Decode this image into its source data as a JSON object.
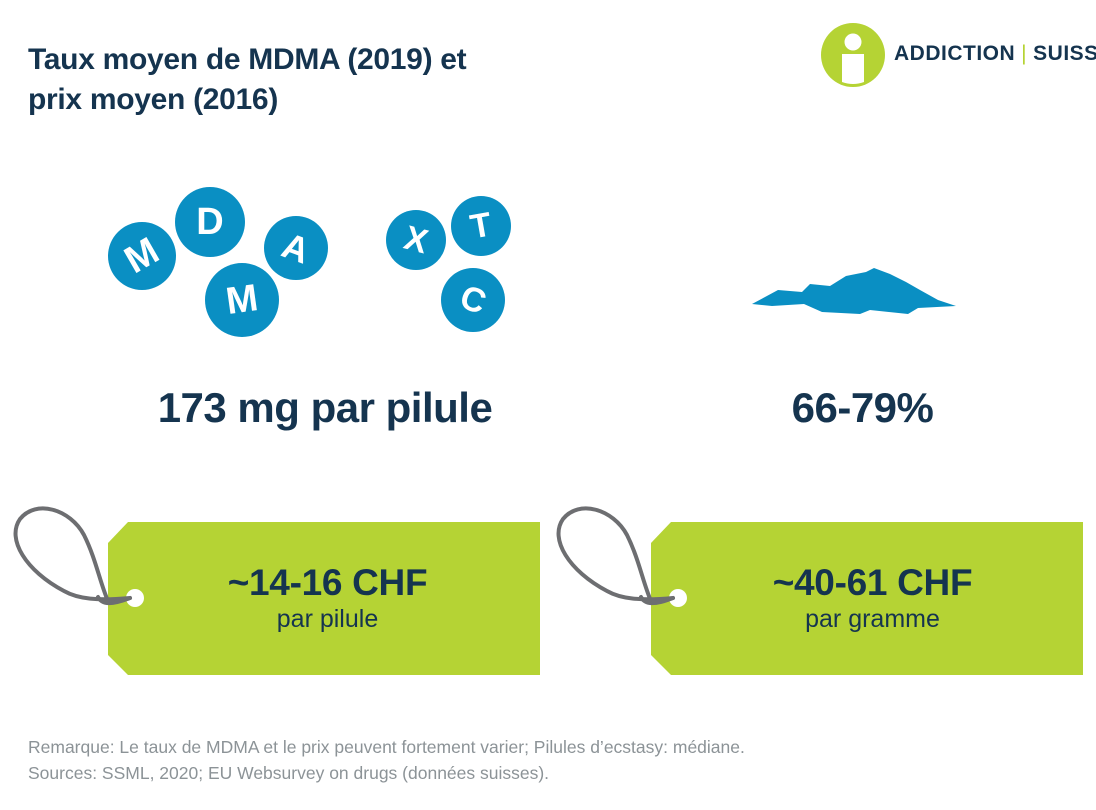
{
  "header": {
    "title_line1": "Taux moyen de MDMA (2019) et",
    "title_line2": "prix moyen (2016)"
  },
  "logo": {
    "word1": "ADDICTION",
    "separator": "|",
    "word2": "SUISSE",
    "icon": "addiction-suisse-i-icon",
    "colors": {
      "green": "#b5d334",
      "navy": "#15344f"
    }
  },
  "pills": {
    "letters": [
      "M",
      "D",
      "A",
      "M",
      "X",
      "T",
      "C"
    ],
    "color": "#0a8fc3",
    "icon": "pill-icon"
  },
  "powder": {
    "icon": "powder-pile-icon",
    "color": "#0a8fc3"
  },
  "stats": {
    "pills_dose": "173 mg par pilule",
    "powder_purity": "66-79%"
  },
  "tags": [
    {
      "price": "~14-16 CHF",
      "unit": "par pilule",
      "icon": "price-tag-icon"
    },
    {
      "price": "~40-61 CHF",
      "unit": "par gramme",
      "icon": "price-tag-icon"
    }
  ],
  "tag_color": "#b5d334",
  "string_color": "#6d6e71",
  "footer": {
    "note": "Remarque: Le taux de MDMA et le prix peuvent fortement varier; Pilules d’ecstasy: médiane.",
    "sources": "Sources: SSML, 2020; EU Websurvey on drugs (données suisses)."
  }
}
